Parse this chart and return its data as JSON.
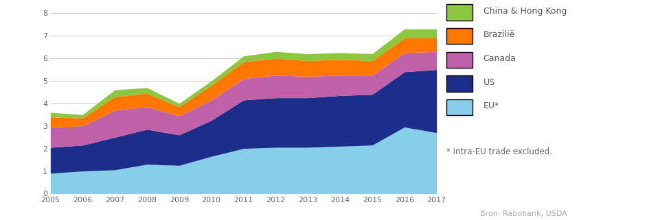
{
  "years": [
    2005,
    2006,
    2007,
    2008,
    2009,
    2010,
    2011,
    2012,
    2013,
    2014,
    2015,
    2016,
    2017
  ],
  "series": {
    "EU": [
      0.9,
      1.0,
      1.05,
      1.3,
      1.25,
      1.65,
      2.0,
      2.05,
      2.05,
      2.1,
      2.15,
      2.95,
      2.7
    ],
    "US": [
      1.15,
      1.15,
      1.45,
      1.55,
      1.35,
      1.6,
      2.15,
      2.2,
      2.2,
      2.25,
      2.25,
      2.45,
      2.8
    ],
    "Canada": [
      0.9,
      0.85,
      1.2,
      1.0,
      0.85,
      0.9,
      0.95,
      1.0,
      0.95,
      0.9,
      0.85,
      0.85,
      0.8
    ],
    "Brazilië": [
      0.45,
      0.35,
      0.6,
      0.6,
      0.4,
      0.65,
      0.75,
      0.75,
      0.7,
      0.7,
      0.65,
      0.65,
      0.6
    ],
    "China & Hong Kong": [
      0.2,
      0.15,
      0.3,
      0.25,
      0.15,
      0.2,
      0.25,
      0.3,
      0.3,
      0.3,
      0.3,
      0.4,
      0.4
    ]
  },
  "colors": {
    "EU": "#87CEEB",
    "US": "#1C2D8A",
    "Canada": "#C060A8",
    "Brazilië": "#FF7700",
    "China & Hong Kong": "#8DC63F"
  },
  "legend_labels": [
    "China & Hong Kong",
    "Brazilië",
    "Canada",
    "US",
    "EU*"
  ],
  "legend_keys": [
    "China & Hong Kong",
    "Brazilië",
    "Canada",
    "US",
    "EU"
  ],
  "footnote": "* Intra-EU trade excluded.",
  "source": "Bron: Rabobank, USDA",
  "ylim": [
    0,
    8
  ],
  "yticks": [
    0,
    1,
    2,
    3,
    4,
    5,
    6,
    7,
    8
  ],
  "background_color": "#ffffff"
}
